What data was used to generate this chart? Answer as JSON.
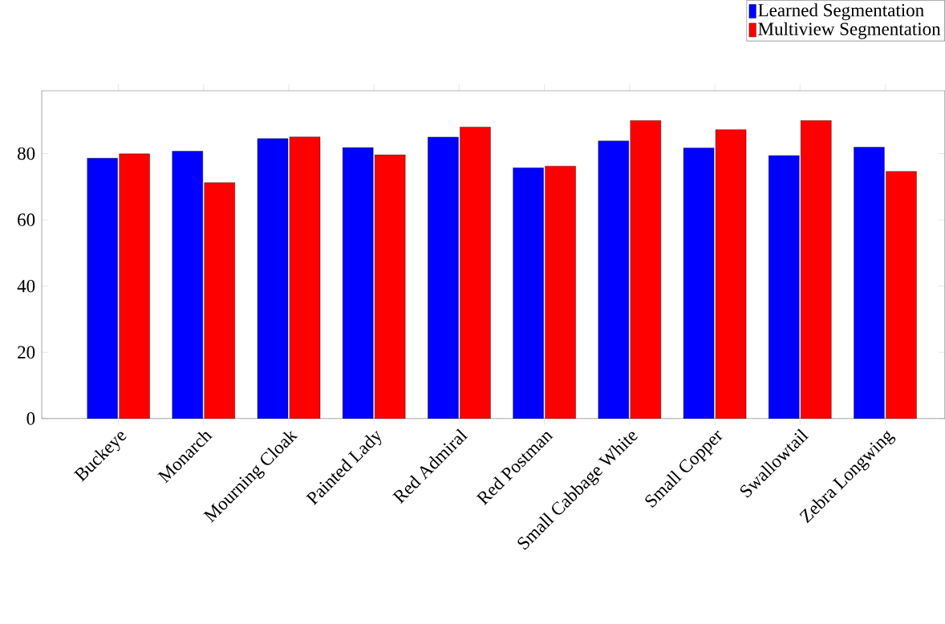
{
  "chart_data": {
    "type": "bar",
    "categories": [
      "Buckeye",
      "Monarch",
      "Mourning Cloak",
      "Painted Lady",
      "Red Admiral",
      "Red Postman",
      "Small Cabbage White",
      "Small Copper",
      "Swallowtail",
      "Zebra Longwing"
    ],
    "series": [
      {
        "name": "Learned Segmentation",
        "color": "#0000ff",
        "values": [
          78.6,
          80.7,
          84.5,
          81.8,
          85.0,
          75.7,
          83.8,
          81.7,
          79.4,
          81.9
        ]
      },
      {
        "name": "Multiview Segmentation",
        "color": "#ff0000",
        "values": [
          79.9,
          71.2,
          85.0,
          79.6,
          88.0,
          76.2,
          90.0,
          87.2,
          90.0,
          74.6
        ]
      }
    ],
    "ylim": [
      0,
      99
    ],
    "yticks": [
      0,
      20,
      40,
      60,
      80
    ],
    "grid": false,
    "legend": "top right"
  }
}
